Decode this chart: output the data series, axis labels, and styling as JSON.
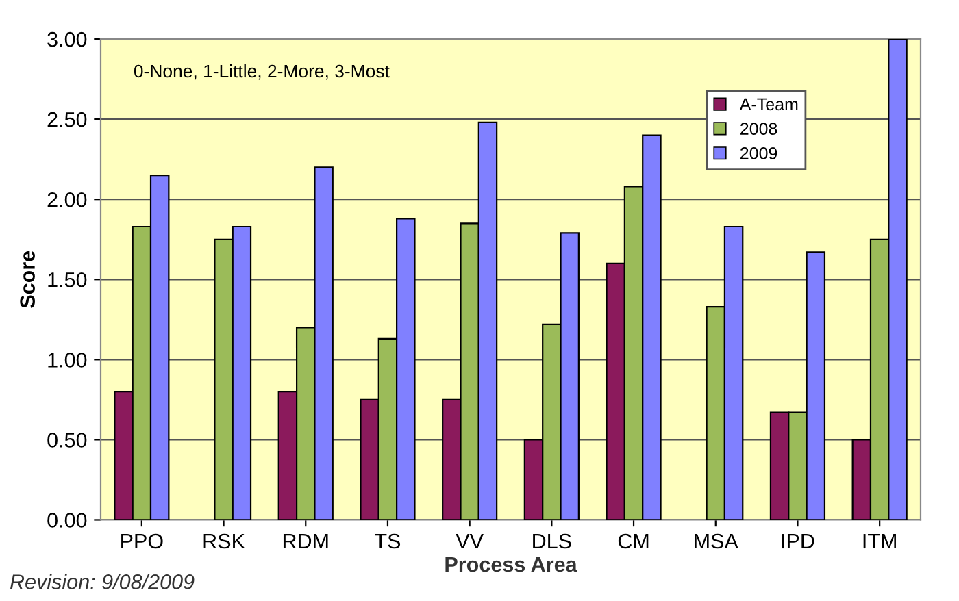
{
  "chart_data": {
    "type": "bar",
    "xlabel": "Process Area",
    "ylabel": "Score",
    "categories": [
      "PPO",
      "RSK",
      "RDM",
      "TS",
      "VV",
      "DLS",
      "CM",
      "MSA",
      "IPD",
      "ITM"
    ],
    "series": [
      {
        "name": "A-Team",
        "color": "#8b1a5c",
        "values": [
          0.8,
          null,
          0.8,
          0.75,
          0.75,
          0.5,
          1.6,
          null,
          0.67,
          0.5
        ]
      },
      {
        "name": "2008",
        "color": "#9bbb59",
        "values": [
          1.83,
          1.75,
          1.2,
          1.13,
          1.85,
          1.22,
          2.08,
          1.33,
          0.67,
          1.75
        ]
      },
      {
        "name": "2009",
        "color": "#8080ff",
        "values": [
          2.15,
          1.83,
          2.2,
          1.88,
          2.48,
          1.79,
          2.4,
          1.83,
          1.67,
          3.0
        ]
      }
    ],
    "ylim": [
      0,
      3
    ],
    "yticks": [
      {
        "value": 0,
        "label": "0.00"
      },
      {
        "value": 0.5,
        "label": "0.50"
      },
      {
        "value": 1,
        "label": "1.00"
      },
      {
        "value": 1.5,
        "label": "1.50"
      },
      {
        "value": 2,
        "label": "2.00"
      },
      {
        "value": 2.5,
        "label": "2.50"
      },
      {
        "value": 3,
        "label": "3.00"
      }
    ],
    "grid": "y",
    "legend": "top right",
    "annotations": [
      "0-None, 1-Little, 2-More, 3-Most",
      "Revision: 9/08/2009"
    ]
  }
}
